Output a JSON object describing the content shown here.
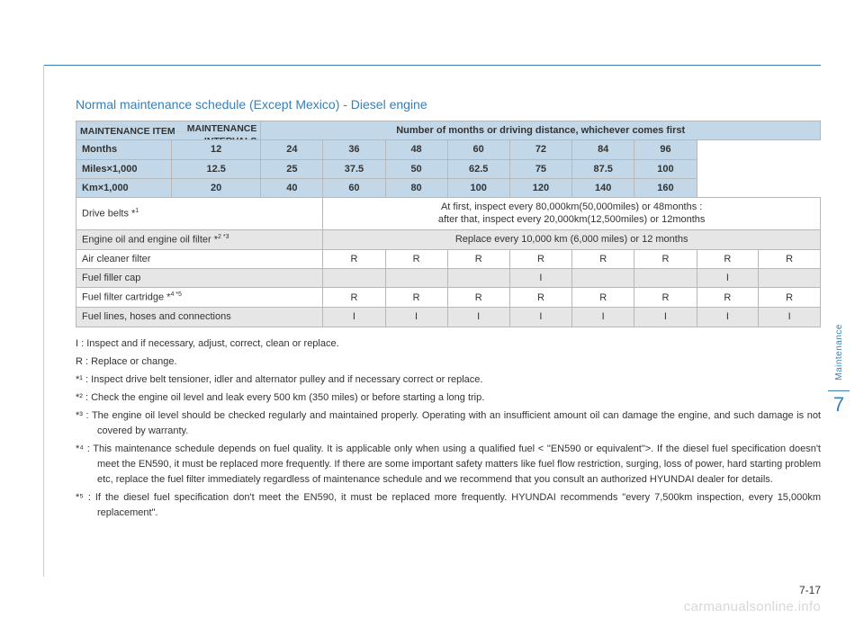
{
  "title": "Normal maintenance schedule (Except Mexico) - Diesel engine",
  "axis": {
    "top": "MAINTENANCE",
    "top2": "INTERVALS",
    "bottom": "MAINTENANCE ITEM"
  },
  "spanHeader": "Number of months or driving distance, whichever comes first",
  "headerRows": [
    {
      "label": "Months",
      "vals": [
        "12",
        "24",
        "36",
        "48",
        "60",
        "72",
        "84",
        "96"
      ]
    },
    {
      "label": "Miles×1,000",
      "vals": [
        "12.5",
        "25",
        "37.5",
        "50",
        "62.5",
        "75",
        "87.5",
        "100"
      ]
    },
    {
      "label": "Km×1,000",
      "vals": [
        "20",
        "40",
        "60",
        "80",
        "100",
        "120",
        "140",
        "160"
      ]
    }
  ],
  "rows": [
    {
      "bg": "row-white",
      "label": "Drive belts *",
      "sup": "1",
      "span": "At first, inspect every 80,000km(50,000miles) or 48months :\nafter that, inspect every 20,000km(12,500miles) or 12months"
    },
    {
      "bg": "row-grey",
      "label": "Engine oil and engine oil filter *",
      "sup": "2 *3",
      "span": "Replace every 10,000 km (6,000 miles) or 12 months"
    },
    {
      "bg": "row-white",
      "label": "Air cleaner filter",
      "vals": [
        "R",
        "R",
        "R",
        "R",
        "R",
        "R",
        "R",
        "R"
      ]
    },
    {
      "bg": "row-grey",
      "label": "Fuel filler cap",
      "vals": [
        "",
        "",
        "",
        "I",
        "",
        "",
        "I",
        ""
      ]
    },
    {
      "bg": "row-white",
      "label": "Fuel filter cartridge *",
      "sup": "4 *5",
      "vals": [
        "R",
        "R",
        "R",
        "R",
        "R",
        "R",
        "R",
        "R"
      ]
    },
    {
      "bg": "row-grey",
      "label": "Fuel lines, hoses and connections",
      "vals": [
        "I",
        "I",
        "I",
        "I",
        "I",
        "I",
        "I",
        "I"
      ]
    }
  ],
  "notes": {
    "i": "I : Inspect and if necessary, adjust, correct, clean or replace.",
    "r": "R : Replace or change.",
    "f1": "*¹ : Inspect drive belt tensioner, idler and alternator pulley and if necessary correct or replace.",
    "f2": "*² : Check the engine oil level and leak every 500 km (350 miles) or before starting a long trip.",
    "f3": "*³ : The engine oil level should be checked regularly and maintained properly. Operating with an insufficient amount oil can damage the engine, and such damage is not covered by warranty.",
    "f4": "*⁴ : This maintenance schedule depends on fuel quality. It is applicable only when using a qualified fuel < \"EN590 or equivalent\">. If the diesel fuel specification doesn't meet the EN590, it must be replaced more frequently. If there are some important safety matters like fuel flow restriction, surging, loss of power, hard starting problem etc, replace the fuel filter immediately regardless of maintenance schedule and we recommend that you consult an authorized HYUNDAI dealer for details.",
    "f5": "*⁵ : If the diesel fuel specification don't meet the EN590, it must be replaced more frequently. HYUNDAI recommends \"every 7,500km inspection, every 15,000km replacement\"."
  },
  "side": {
    "label": "Maintenance",
    "num": "7"
  },
  "pageNum": "7-17",
  "watermark": "carmanualsonline.info",
  "colors": {
    "accent": "#3a7fb3",
    "headerBg": "#c2d8e8",
    "rowGrey": "#e6e6e6",
    "border": "#b8b8b8",
    "text": "#333333",
    "wm": "#d8d8d8"
  }
}
